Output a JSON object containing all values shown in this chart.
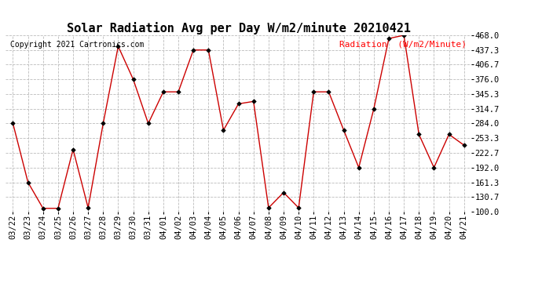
{
  "title": "Solar Radiation Avg per Day W/m2/minute 20210421",
  "copyright": "Copyright 2021 Cartronics.com",
  "legend_label": "Radiation  (W/m2/Minute)",
  "dates": [
    "03/22",
    "03/23",
    "03/24",
    "03/25",
    "03/26",
    "03/27",
    "03/28",
    "03/29",
    "03/30",
    "03/31",
    "04/01",
    "04/02",
    "04/03",
    "04/04",
    "04/05",
    "04/06",
    "04/07",
    "04/08",
    "04/09",
    "04/10",
    "04/11",
    "04/12",
    "04/13",
    "04/14",
    "04/15",
    "04/16",
    "04/17",
    "04/18",
    "04/19",
    "04/20",
    "04/21"
  ],
  "values": [
    284.0,
    161.3,
    107.0,
    107.0,
    230.0,
    108.0,
    284.0,
    445.0,
    376.0,
    284.0,
    350.0,
    350.0,
    437.3,
    437.3,
    270.0,
    325.0,
    330.0,
    108.0,
    140.0,
    108.0,
    350.0,
    350.0,
    270.0,
    192.0,
    314.7,
    461.3,
    468.0,
    261.3,
    192.0,
    261.3,
    238.7
  ],
  "ylim": [
    100.0,
    468.0
  ],
  "yticks": [
    100.0,
    130.7,
    161.3,
    192.0,
    222.7,
    253.3,
    284.0,
    314.7,
    345.3,
    376.0,
    406.7,
    437.3,
    468.0
  ],
  "line_color": "#cc0000",
  "marker_color": "#000000",
  "background_color": "#ffffff",
  "grid_color": "#bbbbbb",
  "title_fontsize": 11,
  "copyright_fontsize": 7,
  "legend_fontsize": 8,
  "tick_fontsize": 7.5
}
